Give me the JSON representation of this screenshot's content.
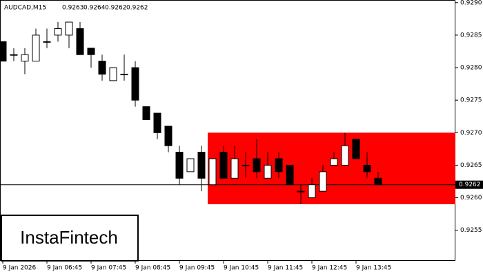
{
  "chart_data": {
    "type": "candlestick",
    "title": "AUDCAD,M15",
    "title_values": [
      0.9263,
      0.9264,
      0.9262,
      0.9262
    ],
    "watermark": "InstaFintech",
    "categories": [
      "9 Jan 2026",
      null,
      null,
      null,
      "9 Jan 06:45",
      null,
      null,
      null,
      "9 Jan 07:45",
      null,
      null,
      null,
      "9 Jan 08:45",
      null,
      null,
      null,
      "9 Jan 09:45",
      null,
      null,
      null,
      "9 Jan 10:45",
      null,
      null,
      null,
      "9 Jan 11:45",
      null,
      null,
      null,
      "9 Jan 12:45",
      null,
      null,
      null,
      "9 Jan 13:45",
      null,
      null
    ],
    "open": [
      0.9284,
      0.9282,
      0.9281,
      0.9281,
      0.9284,
      0.9285,
      0.9285,
      0.9286,
      0.9283,
      0.9281,
      0.9278,
      0.9279,
      0.928,
      0.9274,
      0.9273,
      0.9271,
      0.9267,
      0.9264,
      0.9267,
      0.9262,
      0.9267,
      0.9263,
      0.9265,
      0.9266,
      0.9263,
      0.9266,
      0.9265,
      0.9261,
      0.926,
      0.9261,
      0.9265,
      0.9265,
      0.9269,
      0.9265,
      0.9263
    ],
    "high": [
      0.9284,
      0.9283,
      0.9283,
      0.9286,
      0.9286,
      0.9287,
      0.9287,
      0.9287,
      0.9283,
      0.9282,
      0.928,
      0.9282,
      0.9281,
      0.9274,
      0.9273,
      0.9271,
      0.9268,
      0.9266,
      0.9268,
      0.9266,
      0.9268,
      0.9268,
      0.9267,
      0.9269,
      0.9267,
      0.9267,
      0.9265,
      0.9262,
      0.9263,
      0.9265,
      0.9267,
      0.927,
      0.9269,
      0.9267,
      0.9264
    ],
    "low": [
      0.9281,
      0.9281,
      0.9279,
      0.9281,
      0.9283,
      0.9284,
      0.9283,
      0.9282,
      0.928,
      0.9278,
      0.9278,
      0.9278,
      0.9274,
      0.9272,
      0.9269,
      0.9267,
      0.9262,
      0.9264,
      0.9261,
      0.9262,
      0.9263,
      0.9263,
      0.9263,
      0.9263,
      0.9263,
      0.9263,
      0.9262,
      0.9259,
      0.926,
      0.9261,
      0.9265,
      0.9265,
      0.9266,
      0.9263,
      0.9262
    ],
    "close": [
      0.9281,
      0.9282,
      0.9282,
      0.9285,
      0.9284,
      0.9286,
      0.9287,
      0.9282,
      0.9282,
      0.9279,
      0.928,
      0.9279,
      0.9275,
      0.9272,
      0.927,
      0.9268,
      0.9263,
      0.9266,
      0.9263,
      0.9266,
      0.9263,
      0.9266,
      0.9265,
      0.9264,
      0.9265,
      0.9264,
      0.9262,
      0.9261,
      0.9262,
      0.9264,
      0.9266,
      0.9268,
      0.9266,
      0.9264,
      0.9262
    ],
    "zone": {
      "start_index": 19,
      "ymin": 0.9259,
      "ymax": 0.927,
      "color": "#ff0000"
    },
    "current_price": 0.9262,
    "ylim": [
      0.92503,
      0.92904
    ],
    "yticks": [
      0.9255,
      {
        "value": 0.926,
        "label": "0.9260"
      },
      0.9265,
      {
        "value": 0.927,
        "label": "0.9270"
      },
      0.9275,
      {
        "value": 0.928,
        "label": "0.9280"
      },
      0.9285,
      {
        "value": 0.929,
        "label": "0.9290"
      }
    ]
  }
}
